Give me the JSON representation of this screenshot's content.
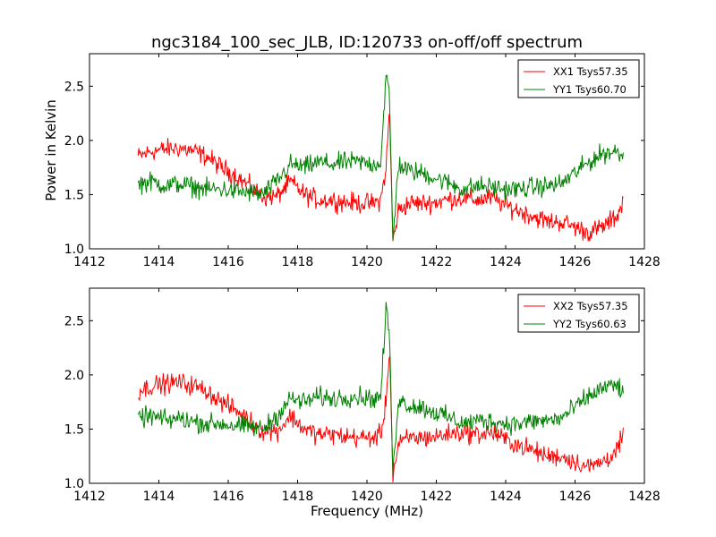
{
  "chart_data": {
    "type": "line",
    "title": "ngc3184_100_sec_JLB, ID:120733 on-off/off spectrum",
    "xlabel": "Frequency (MHz)",
    "ylabel": "Power in Kelvin",
    "xlim": [
      1412,
      1428
    ],
    "ylim": [
      1.0,
      2.8
    ],
    "xticks": [
      "1412",
      "1414",
      "1416",
      "1418",
      "1420",
      "1422",
      "1424",
      "1426",
      "1428"
    ],
    "yticks": [
      "1.0",
      "1.5",
      "2.0",
      "2.5"
    ],
    "legend_position": "top-right",
    "grid": false,
    "panels": [
      {
        "series": [
          {
            "name": "XX1 Tsys57.35",
            "color": "#ff0000",
            "x": [
              1413.4,
              1413.8,
              1414.2,
              1414.6,
              1415.0,
              1415.4,
              1415.8,
              1416.2,
              1416.6,
              1417.0,
              1417.4,
              1417.8,
              1418.2,
              1418.6,
              1419.0,
              1419.4,
              1419.8,
              1420.2,
              1420.4,
              1420.55,
              1420.65,
              1420.75,
              1420.9,
              1421.2,
              1421.6,
              1422.0,
              1422.4,
              1422.8,
              1423.2,
              1423.6,
              1424.0,
              1424.4,
              1424.8,
              1425.2,
              1425.6,
              1426.0,
              1426.4,
              1426.8,
              1427.2,
              1427.4
            ],
            "y": [
              1.85,
              1.9,
              1.92,
              1.93,
              1.9,
              1.85,
              1.75,
              1.68,
              1.58,
              1.48,
              1.48,
              1.62,
              1.5,
              1.45,
              1.45,
              1.43,
              1.42,
              1.42,
              1.45,
              1.75,
              2.28,
              1.05,
              1.35,
              1.42,
              1.42,
              1.43,
              1.46,
              1.47,
              1.45,
              1.47,
              1.4,
              1.35,
              1.3,
              1.25,
              1.25,
              1.2,
              1.15,
              1.2,
              1.3,
              1.45
            ]
          },
          {
            "name": "YY1 Tsys60.70",
            "color": "#008000",
            "x": [
              1413.4,
              1413.8,
              1414.2,
              1414.6,
              1415.0,
              1415.4,
              1415.8,
              1416.2,
              1416.6,
              1417.0,
              1417.4,
              1417.8,
              1418.2,
              1418.6,
              1419.0,
              1419.4,
              1419.8,
              1420.2,
              1420.4,
              1420.55,
              1420.65,
              1420.75,
              1420.9,
              1421.2,
              1421.6,
              1422.0,
              1422.4,
              1422.8,
              1423.2,
              1423.6,
              1424.0,
              1424.4,
              1424.8,
              1425.2,
              1425.6,
              1426.0,
              1426.4,
              1426.8,
              1427.2,
              1427.4
            ],
            "y": [
              1.6,
              1.62,
              1.58,
              1.6,
              1.57,
              1.55,
              1.55,
              1.53,
              1.52,
              1.5,
              1.62,
              1.78,
              1.75,
              1.8,
              1.78,
              1.8,
              1.8,
              1.78,
              1.8,
              2.6,
              2.4,
              1.05,
              1.78,
              1.72,
              1.7,
              1.65,
              1.6,
              1.55,
              1.58,
              1.57,
              1.55,
              1.55,
              1.57,
              1.58,
              1.6,
              1.7,
              1.8,
              1.88,
              1.9,
              1.85
            ]
          }
        ]
      },
      {
        "series": [
          {
            "name": "XX2 Tsys57.35",
            "color": "#ff0000",
            "x": [
              1413.4,
              1413.8,
              1414.2,
              1414.6,
              1415.0,
              1415.4,
              1415.8,
              1416.2,
              1416.6,
              1417.0,
              1417.4,
              1417.8,
              1418.2,
              1418.6,
              1419.0,
              1419.4,
              1419.8,
              1420.2,
              1420.4,
              1420.55,
              1420.65,
              1420.75,
              1420.9,
              1421.2,
              1421.6,
              1422.0,
              1422.4,
              1422.8,
              1423.2,
              1423.6,
              1424.0,
              1424.4,
              1424.8,
              1425.2,
              1425.6,
              1426.0,
              1426.4,
              1426.8,
              1427.2,
              1427.4
            ],
            "y": [
              1.85,
              1.9,
              1.92,
              1.93,
              1.9,
              1.85,
              1.75,
              1.68,
              1.58,
              1.48,
              1.48,
              1.62,
              1.5,
              1.45,
              1.45,
              1.43,
              1.42,
              1.42,
              1.45,
              1.75,
              2.28,
              1.05,
              1.35,
              1.42,
              1.42,
              1.43,
              1.46,
              1.47,
              1.45,
              1.47,
              1.4,
              1.35,
              1.3,
              1.25,
              1.25,
              1.2,
              1.15,
              1.2,
              1.3,
              1.45
            ]
          },
          {
            "name": "YY2 Tsys60.63",
            "color": "#008000",
            "x": [
              1413.4,
              1413.8,
              1414.2,
              1414.6,
              1415.0,
              1415.4,
              1415.8,
              1416.2,
              1416.6,
              1417.0,
              1417.4,
              1417.8,
              1418.2,
              1418.6,
              1419.0,
              1419.4,
              1419.8,
              1420.2,
              1420.4,
              1420.55,
              1420.65,
              1420.75,
              1420.9,
              1421.2,
              1421.6,
              1422.0,
              1422.4,
              1422.8,
              1423.2,
              1423.6,
              1424.0,
              1424.4,
              1424.8,
              1425.2,
              1425.6,
              1426.0,
              1426.4,
              1426.8,
              1427.2,
              1427.4
            ],
            "y": [
              1.6,
              1.62,
              1.58,
              1.6,
              1.57,
              1.55,
              1.55,
              1.53,
              1.52,
              1.5,
              1.62,
              1.78,
              1.75,
              1.8,
              1.78,
              1.8,
              1.8,
              1.78,
              1.8,
              2.6,
              2.4,
              1.05,
              1.78,
              1.72,
              1.7,
              1.65,
              1.6,
              1.55,
              1.58,
              1.57,
              1.55,
              1.55,
              1.57,
              1.58,
              1.6,
              1.7,
              1.8,
              1.88,
              1.9,
              1.85
            ]
          }
        ]
      }
    ]
  }
}
